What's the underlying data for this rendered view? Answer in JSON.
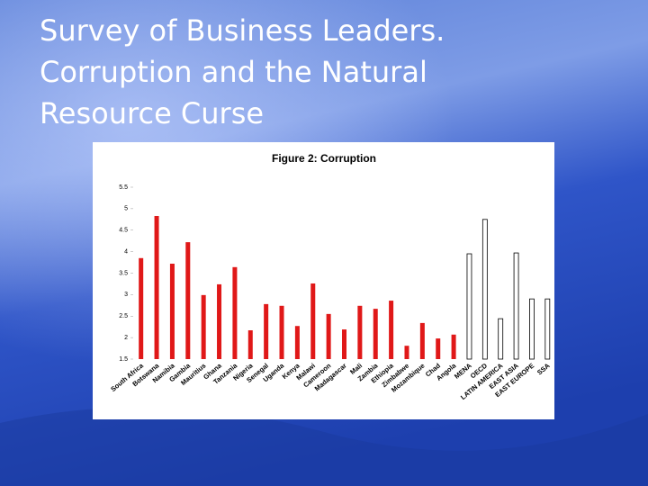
{
  "slide": {
    "title_lines": [
      "Survey of Business Leaders.",
      "Corruption and the Natural",
      "Resource Curse"
    ]
  },
  "chart_data": {
    "type": "bar",
    "title": "Figure 2: Corruption",
    "categories": [
      "South Africa",
      "Botswana",
      "Namibia",
      "Gambia",
      "Mauritius",
      "Ghana",
      "Tanzania",
      "Nigeria",
      "Senegal",
      "Uganda",
      "Kenya",
      "Malawi",
      "Cameroon",
      "Madagascar",
      "Mali",
      "Zambia",
      "Ethiopia",
      "Zimbabwe",
      "Mozambique",
      "Chad",
      "Angola",
      "MENA",
      "OECD",
      "LATIN AMERICA",
      "EAST ASIA",
      "EAST EUROPE",
      "SSA"
    ],
    "values": [
      3.85,
      4.83,
      3.72,
      4.22,
      2.99,
      3.24,
      3.64,
      2.17,
      2.78,
      2.74,
      2.27,
      3.26,
      2.55,
      2.19,
      2.74,
      2.67,
      2.86,
      1.81,
      2.34,
      1.98,
      2.07,
      3.95,
      4.75,
      2.44,
      3.97,
      2.9,
      2.9
    ],
    "colors": [
      "#e01818",
      "#e01818",
      "#e01818",
      "#e01818",
      "#e01818",
      "#e01818",
      "#e01818",
      "#e01818",
      "#e01818",
      "#e01818",
      "#e01818",
      "#e01818",
      "#e01818",
      "#e01818",
      "#e01818",
      "#e01818",
      "#e01818",
      "#e01818",
      "#e01818",
      "#e01818",
      "#e01818",
      "#ffffff",
      "#ffffff",
      "#ffffff",
      "#ffffff",
      "#ffffff",
      "#ffffff"
    ],
    "ylim": [
      1.5,
      5.5
    ],
    "yticks": [
      1.5,
      2,
      2.5,
      3,
      3.5,
      4,
      4.5,
      5,
      5.5
    ],
    "grid": false
  }
}
